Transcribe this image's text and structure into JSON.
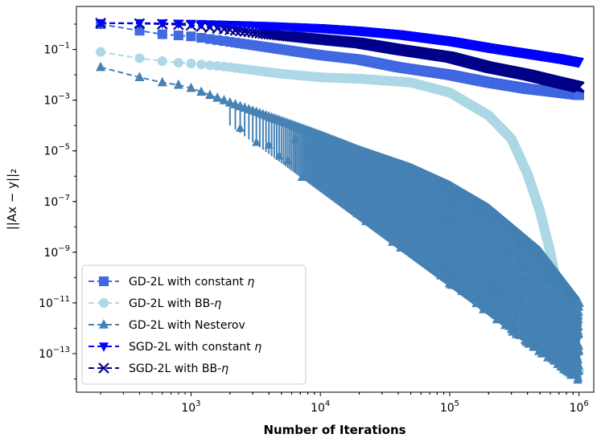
{
  "chart_data": {
    "type": "line",
    "title": "",
    "xlabel": "Number of Iterations",
    "ylabel": "||Ax − y||₂",
    "xscale": "log",
    "yscale": "log",
    "xlim": [
      130,
      1300000
    ],
    "ylim": [
      3e-15,
      5
    ],
    "x_tick_values": [
      1000,
      10000,
      100000,
      1000000
    ],
    "x_tick_labels": [
      {
        "base": "10",
        "exp": "3"
      },
      {
        "base": "10",
        "exp": "4"
      },
      {
        "base": "10",
        "exp": "5"
      },
      {
        "base": "10",
        "exp": "6"
      }
    ],
    "y_tick_values": [
      1e-13,
      1e-11,
      1e-09,
      1e-07,
      1e-05,
      0.001,
      0.1
    ],
    "y_tick_labels": [
      {
        "base": "10",
        "exp": "−13"
      },
      {
        "base": "10",
        "exp": "−11"
      },
      {
        "base": "10",
        "exp": "−9"
      },
      {
        "base": "10",
        "exp": "−7"
      },
      {
        "base": "10",
        "exp": "−5"
      },
      {
        "base": "10",
        "exp": "−3"
      },
      {
        "base": "10",
        "exp": "−1"
      }
    ],
    "legend_position": "bottom-left",
    "series": [
      {
        "name": "GD-2L with constant η",
        "legend_prefix": "GD-2L with constant ",
        "legend_symbol": "η",
        "color": "#4169e1",
        "marker": "square",
        "linestyle": "dashed",
        "x": [
          200,
          400,
          600,
          800,
          1000,
          2000,
          4000,
          10000,
          20000,
          40000,
          100000,
          200000,
          400000,
          700000,
          1000000
        ],
        "y": [
          1.0,
          0.55,
          0.4,
          0.36,
          0.33,
          0.2,
          0.12,
          0.06,
          0.04,
          0.02,
          0.01,
          0.005,
          0.0028,
          0.002,
          0.0016
        ]
      },
      {
        "name": "GD-2L with BB-η",
        "legend_prefix": "GD-2L with BB-",
        "legend_symbol": "η",
        "color": "#add8e6",
        "marker": "circle",
        "linestyle": "dashed",
        "x": [
          200,
          400,
          600,
          800,
          1000,
          2000,
          5000,
          10000,
          20000,
          50000,
          100000,
          200000,
          300000,
          400000,
          500000,
          600000,
          700000,
          800000,
          900000,
          1000000
        ],
        "y": [
          0.08,
          0.045,
          0.035,
          0.03,
          0.028,
          0.02,
          0.011,
          0.008,
          0.007,
          0.005,
          0.002,
          0.00025,
          3e-05,
          1.2e-06,
          4e-08,
          1e-09,
          2e-11,
          1e-12,
          8e-14,
          2e-14
        ]
      },
      {
        "name": "GD-2L with Nesterov",
        "legend_prefix": "GD-2L with Nesterov",
        "legend_symbol": "",
        "color": "#4682b4",
        "marker": "triangle-up",
        "linestyle": "dashed",
        "x": [
          200,
          400,
          600,
          800,
          1000,
          2000,
          5000,
          10000,
          20000,
          50000,
          100000,
          200000,
          500000,
          1000000
        ],
        "y": [
          0.02,
          0.008,
          0.005,
          0.004,
          0.003,
          0.0008,
          0.00015,
          4e-05,
          1e-05,
          2e-06,
          4e-07,
          5e-08,
          1e-09,
          1e-11
        ],
        "oscillation": {
          "start": 2000,
          "end": 1000000,
          "low_start": 0.0001,
          "low_end": 8e-15
        }
      },
      {
        "name": "SGD-2L with constant η",
        "legend_prefix": "SGD-2L with constant ",
        "legend_symbol": "η",
        "color": "#0000ff",
        "marker": "triangle-down",
        "linestyle": "dashed",
        "x": [
          200,
          400,
          600,
          800,
          1000,
          2000,
          4000,
          10000,
          20000,
          40000,
          100000,
          200000,
          400000,
          700000,
          1000000
        ],
        "y": [
          1.1,
          1.1,
          1.08,
          1.06,
          1.05,
          0.95,
          0.85,
          0.7,
          0.55,
          0.4,
          0.22,
          0.12,
          0.07,
          0.045,
          0.032
        ]
      },
      {
        "name": "SGD-2L with BB-η",
        "legend_prefix": "SGD-2L with BB-",
        "legend_symbol": "η",
        "color": "#00008b",
        "marker": "x",
        "linestyle": "dashed",
        "x": [
          200,
          400,
          600,
          800,
          1000,
          2000,
          4000,
          10000,
          20000,
          40000,
          100000,
          200000,
          400000,
          700000,
          1000000
        ],
        "y": [
          1.1,
          1.05,
          1.0,
          0.95,
          0.9,
          0.6,
          0.4,
          0.25,
          0.18,
          0.1,
          0.05,
          0.02,
          0.01,
          0.005,
          0.0033
        ]
      }
    ]
  }
}
